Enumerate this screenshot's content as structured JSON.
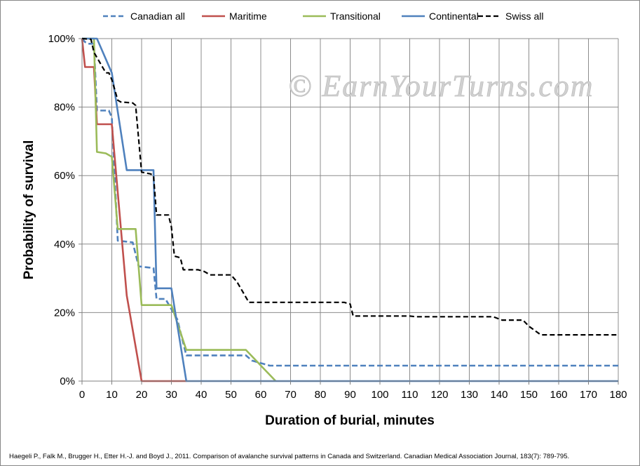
{
  "chart_data": {
    "type": "line",
    "title": "",
    "xlabel": "Duration of burial, minutes",
    "ylabel": "Probability of survival",
    "xlim": [
      0,
      180
    ],
    "ylim": [
      0,
      100
    ],
    "x_ticks": [
      0,
      10,
      20,
      30,
      40,
      50,
      60,
      70,
      80,
      90,
      100,
      110,
      120,
      130,
      140,
      150,
      160,
      170,
      180
    ],
    "y_ticks": [
      0,
      20,
      40,
      60,
      80,
      100
    ],
    "y_tick_labels": [
      "0%",
      "20%",
      "40%",
      "60%",
      "80%",
      "100%"
    ],
    "grid": "vertical and horizontal",
    "legend_position": "top",
    "series": [
      {
        "name": "Canadian all",
        "color": "#4f81bd",
        "dash": "dashed",
        "points": [
          [
            0,
            100
          ],
          [
            1,
            99
          ],
          [
            2,
            98.5
          ],
          [
            4,
            98.5
          ],
          [
            5,
            79
          ],
          [
            9,
            79
          ],
          [
            10,
            77
          ],
          [
            12,
            41
          ],
          [
            17,
            40.5
          ],
          [
            19,
            33.5
          ],
          [
            24,
            33
          ],
          [
            25,
            24
          ],
          [
            28,
            24
          ],
          [
            30,
            21
          ],
          [
            32,
            18
          ],
          [
            35,
            7.5
          ],
          [
            55,
            7.5
          ],
          [
            57,
            6
          ],
          [
            63,
            4.5
          ],
          [
            180,
            4.5
          ]
        ]
      },
      {
        "name": "Maritime",
        "color": "#c0504d",
        "dash": "solid",
        "points": [
          [
            0,
            100
          ],
          [
            1,
            91.7
          ],
          [
            4,
            91.7
          ],
          [
            5,
            75
          ],
          [
            10,
            75
          ],
          [
            15,
            25
          ],
          [
            20,
            0
          ],
          [
            35,
            0
          ]
        ]
      },
      {
        "name": "Transitional",
        "color": "#9bbb59",
        "dash": "solid",
        "points": [
          [
            0,
            100
          ],
          [
            4,
            100
          ],
          [
            5,
            66.9
          ],
          [
            8,
            66.5
          ],
          [
            10,
            65.5
          ],
          [
            12,
            44.4
          ],
          [
            18,
            44.4
          ],
          [
            20,
            22.2
          ],
          [
            30,
            22.2
          ],
          [
            35,
            9.1
          ],
          [
            55,
            9.1
          ],
          [
            65,
            0
          ]
        ]
      },
      {
        "name": "Continental",
        "color": "#4f81bd",
        "dash": "solid",
        "points": [
          [
            0,
            100
          ],
          [
            5,
            100
          ],
          [
            10,
            90
          ],
          [
            15,
            61.6
          ],
          [
            24,
            61.6
          ],
          [
            25,
            27.1
          ],
          [
            30,
            27.1
          ],
          [
            35,
            0
          ],
          [
            180,
            0
          ]
        ]
      },
      {
        "name": "Swiss all",
        "color": "#000000",
        "dash": "dashed",
        "points": [
          [
            0,
            100
          ],
          [
            3,
            99.8
          ],
          [
            4,
            96
          ],
          [
            6,
            93
          ],
          [
            8,
            90
          ],
          [
            9,
            90
          ],
          [
            10,
            88
          ],
          [
            11,
            85
          ],
          [
            12,
            82
          ],
          [
            13,
            81.5
          ],
          [
            17,
            81.2
          ],
          [
            18,
            80.5
          ],
          [
            20,
            61
          ],
          [
            23,
            60.5
          ],
          [
            24,
            60
          ],
          [
            25,
            48.5
          ],
          [
            29,
            48.5
          ],
          [
            30,
            45
          ],
          [
            31,
            36.5
          ],
          [
            33,
            36
          ],
          [
            34,
            32.5
          ],
          [
            39,
            32.5
          ],
          [
            41,
            32
          ],
          [
            43,
            31
          ],
          [
            50,
            31
          ],
          [
            52,
            29
          ],
          [
            54,
            26
          ],
          [
            56,
            23
          ],
          [
            88,
            23
          ],
          [
            90,
            22.5
          ],
          [
            91,
            19
          ],
          [
            110,
            19
          ],
          [
            112,
            18.8
          ],
          [
            138,
            18.8
          ],
          [
            141,
            17.8
          ],
          [
            148,
            17.8
          ],
          [
            150,
            16
          ],
          [
            154,
            13.5
          ],
          [
            180,
            13.5
          ]
        ]
      }
    ]
  },
  "watermark": "© EarnYourTurns.com",
  "citation": "Haegeli P., Falk M., Brugger H., Etter H.-J. and Boyd J., 2011. Comparison of avalanche survival patterns in Canada and Switzerland. Canadian Medical Association Journal, 183(7): 789-795."
}
